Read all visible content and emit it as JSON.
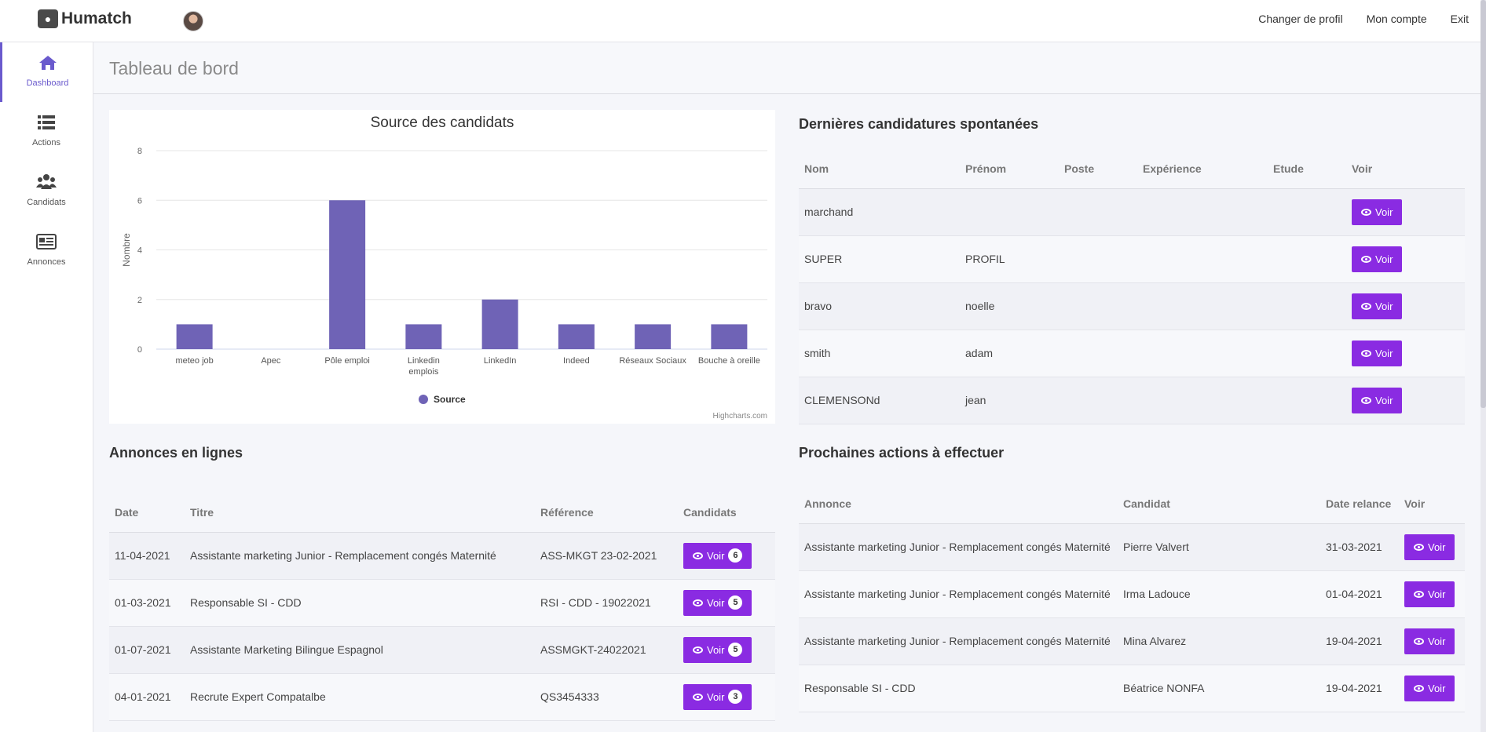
{
  "app": {
    "name": "Humatch"
  },
  "topnav": {
    "change_profile": "Changer de profil",
    "account": "Mon compte",
    "exit": "Exit"
  },
  "sidebar": {
    "items": [
      {
        "label": "Dashboard",
        "icon": "home-icon"
      },
      {
        "label": "Actions",
        "icon": "list-icon"
      },
      {
        "label": "Candidats",
        "icon": "users-icon"
      },
      {
        "label": "Annonces",
        "icon": "newspaper-icon"
      }
    ]
  },
  "page": {
    "title": "Tableau de bord"
  },
  "colors": {
    "accent": "#6a5acd",
    "button": "#8a2be2",
    "bar": "#6f63b6"
  },
  "chart_data": {
    "type": "bar",
    "title": "Source des candidats",
    "ylabel": "Nombre",
    "xlabel": "",
    "ylim": [
      0,
      8
    ],
    "yticks": [
      "0",
      "2",
      "4",
      "6",
      "8"
    ],
    "categories": [
      "meteo job",
      "Apec",
      "Pôle emploi",
      "Linkedin emplois",
      "LinkedIn",
      "Indeed",
      "Réseaux Sociaux",
      "Bouche à oreille"
    ],
    "series": [
      {
        "name": "Source",
        "values": [
          1,
          0,
          6,
          1,
          2,
          1,
          1,
          1
        ]
      }
    ],
    "legend": "bottom-center",
    "credit": "Highcharts.com"
  },
  "spontaneous": {
    "title": "Dernières candidatures spontanées",
    "headers": [
      "Nom",
      "Prénom",
      "Poste",
      "Expérience",
      "Etude",
      "Voir"
    ],
    "button_label": "Voir",
    "rows": [
      {
        "nom": "marchand",
        "prenom": ""
      },
      {
        "nom": "SUPER",
        "prenom": "PROFIL"
      },
      {
        "nom": "bravo",
        "prenom": "noelle"
      },
      {
        "nom": "smith",
        "prenom": "adam"
      },
      {
        "nom": "CLEMENSONd",
        "prenom": "jean"
      }
    ]
  },
  "ads": {
    "title": "Annonces en lignes",
    "headers": [
      "Date",
      "Titre",
      "Référence",
      "Candidats"
    ],
    "button_label": "Voir",
    "rows": [
      {
        "date": "11-04-2021",
        "titre": "Assistante marketing Junior - Remplacement congés Maternité",
        "ref": "ASS-MKGT 23-02-2021",
        "count": "6"
      },
      {
        "date": "01-03-2021",
        "titre": "Responsable SI - CDD",
        "ref": "RSI - CDD - 19022021",
        "count": "5"
      },
      {
        "date": "01-07-2021",
        "titre": "Assistante Marketing Bilingue Espagnol",
        "ref": "ASSMGKT-24022021",
        "count": "5"
      },
      {
        "date": "04-01-2021",
        "titre": "Recrute Expert Compatalbe",
        "ref": "QS3454333",
        "count": "3"
      }
    ]
  },
  "actions": {
    "title": "Prochaines actions à effectuer",
    "headers": [
      "Annonce",
      "Candidat",
      "Date relance",
      "Voir"
    ],
    "button_label": "Voir",
    "rows": [
      {
        "annonce": "Assistante marketing Junior - Remplacement congés Maternité",
        "candidat": "Pierre Valvert",
        "date": "31-03-2021"
      },
      {
        "annonce": "Assistante marketing Junior - Remplacement congés Maternité",
        "candidat": "Irma Ladouce",
        "date": "01-04-2021"
      },
      {
        "annonce": "Assistante marketing Junior - Remplacement congés Maternité",
        "candidat": "Mina Alvarez",
        "date": "19-04-2021"
      },
      {
        "annonce": "Responsable SI - CDD",
        "candidat": "Béatrice NONFA",
        "date": "19-04-2021"
      }
    ]
  }
}
